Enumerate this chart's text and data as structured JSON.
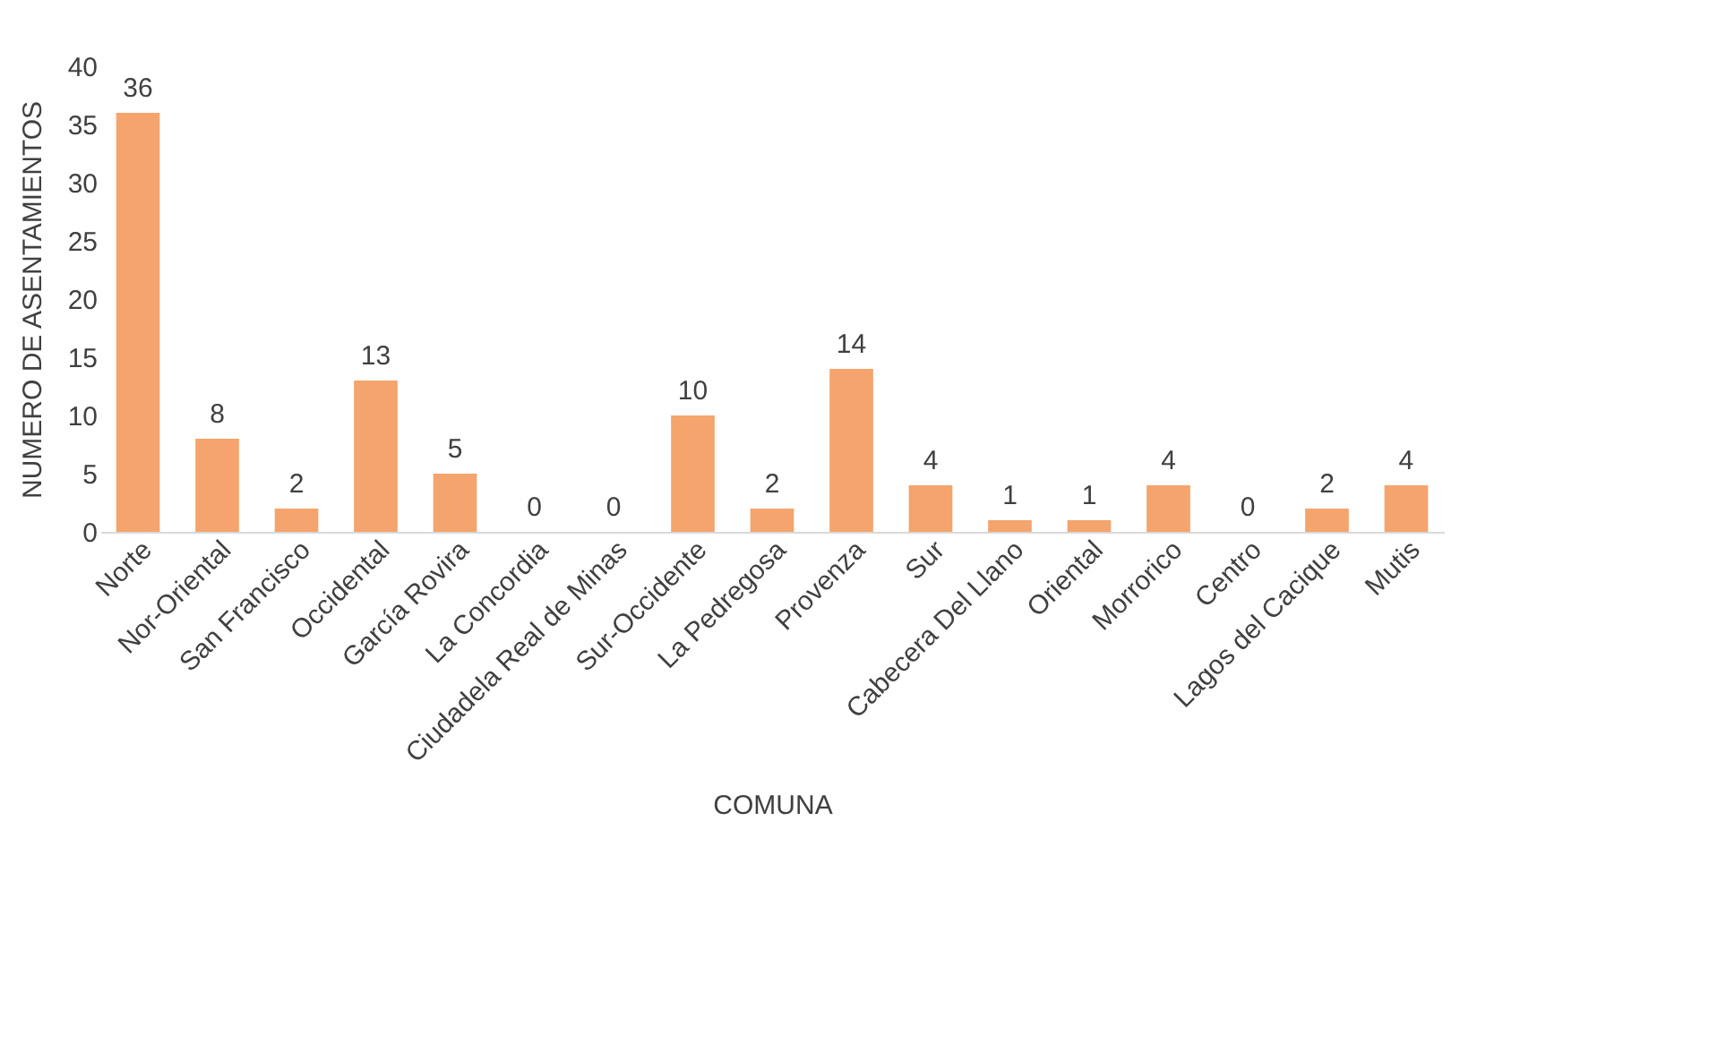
{
  "chart_data": {
    "type": "bar",
    "xlabel": "COMUNA",
    "ylabel": "NUMERO DE ASENTAMIENTOS",
    "categories": [
      "Norte",
      "Nor-Oriental",
      "San Francisco",
      "Occidental",
      "García Rovira",
      "La Concordia",
      "Ciudadela Real de Minas",
      "Sur-Occidente",
      "La Pedregosa",
      "Provenza",
      "Sur",
      "Cabecera Del Llano",
      "Oriental",
      "Morrorico",
      "Centro",
      "Lagos del Cacique",
      "Mutis"
    ],
    "values": [
      36,
      8,
      2,
      13,
      5,
      0,
      0,
      10,
      2,
      14,
      4,
      1,
      1,
      4,
      0,
      2,
      4
    ],
    "color": "#f4a46c",
    "ylim": [
      0,
      40
    ],
    "yticks": [
      0,
      5,
      10,
      15,
      20,
      25,
      30,
      35,
      40
    ],
    "grid": false,
    "data_labels": true
  }
}
